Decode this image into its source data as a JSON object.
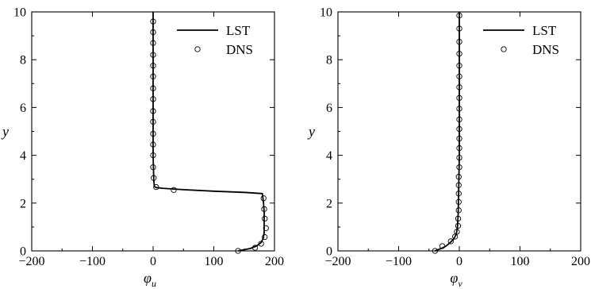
{
  "chart_data": [
    {
      "type": "line",
      "xlabel": "φu",
      "xlabel_main": "φ",
      "xlabel_sub": "u",
      "ylabel": "y",
      "xlim": [
        -200,
        200
      ],
      "ylim": [
        0,
        10
      ],
      "xticks": [
        -200,
        -100,
        0,
        100,
        200
      ],
      "yticks": [
        0,
        2,
        4,
        6,
        8,
        10
      ],
      "legend_position": "top-right",
      "series": [
        {
          "name": "LST",
          "style": "line",
          "points": [
            [
              140,
              0
            ],
            [
              150,
              0.05
            ],
            [
              160,
              0.1
            ],
            [
              170,
              0.2
            ],
            [
              178,
              0.35
            ],
            [
              182,
              0.55
            ],
            [
              183,
              0.8
            ],
            [
              183,
              1.2
            ],
            [
              183,
              1.6
            ],
            [
              182,
              2.0
            ],
            [
              180,
              2.4
            ],
            [
              150,
              2.45
            ],
            [
              100,
              2.5
            ],
            [
              50,
              2.56
            ],
            [
              15,
              2.62
            ],
            [
              5,
              2.65
            ],
            [
              2,
              2.7
            ],
            [
              1,
              3.0
            ],
            [
              0,
              4
            ],
            [
              0,
              6
            ],
            [
              0,
              8
            ],
            [
              0,
              10
            ]
          ]
        },
        {
          "name": "DNS",
          "style": "markers",
          "points": [
            [
              140,
              0
            ],
            [
              168,
              0.13
            ],
            [
              178,
              0.3
            ],
            [
              184,
              0.58
            ],
            [
              186,
              0.95
            ],
            [
              184,
              1.35
            ],
            [
              183,
              1.75
            ],
            [
              182,
              2.2
            ],
            [
              34,
              2.55
            ],
            [
              5,
              2.67
            ],
            [
              1,
              3.05
            ],
            [
              0,
              3.5
            ],
            [
              0,
              4.0
            ],
            [
              0,
              4.45
            ],
            [
              0,
              4.9
            ],
            [
              0,
              5.4
            ],
            [
              0,
              5.85
            ],
            [
              0,
              6.35
            ],
            [
              0,
              6.8
            ],
            [
              0,
              7.3
            ],
            [
              0,
              7.75
            ],
            [
              0,
              8.2
            ],
            [
              0,
              8.7
            ],
            [
              0,
              9.15
            ],
            [
              0,
              9.6
            ]
          ]
        }
      ]
    },
    {
      "type": "line",
      "xlabel": "φv",
      "xlabel_main": "φ",
      "xlabel_sub": "v",
      "ylabel": "y",
      "xlim": [
        -200,
        200
      ],
      "ylim": [
        0,
        10
      ],
      "xticks": [
        -200,
        -100,
        0,
        100,
        200
      ],
      "yticks": [
        0,
        2,
        4,
        6,
        8,
        10
      ],
      "legend_position": "top-right",
      "series": [
        {
          "name": "LST",
          "style": "line",
          "points": [
            [
              -40,
              0
            ],
            [
              -30,
              0.1
            ],
            [
              -22,
              0.2
            ],
            [
              -15,
              0.35
            ],
            [
              -9,
              0.5
            ],
            [
              -5,
              0.7
            ],
            [
              -3,
              1.0
            ],
            [
              -2,
              1.5
            ],
            [
              -1,
              2.5
            ],
            [
              0,
              4
            ],
            [
              0,
              6
            ],
            [
              0,
              8
            ],
            [
              0,
              10
            ]
          ]
        },
        {
          "name": "DNS",
          "style": "markers",
          "points": [
            [
              -40,
              0
            ],
            [
              -28,
              0.2
            ],
            [
              -14,
              0.4
            ],
            [
              -7,
              0.6
            ],
            [
              -4,
              0.8
            ],
            [
              -2,
              1.05
            ],
            [
              -2,
              1.35
            ],
            [
              -1,
              1.7
            ],
            [
              -1,
              2.05
            ],
            [
              -1,
              2.4
            ],
            [
              -1,
              2.75
            ],
            [
              -1,
              3.1
            ],
            [
              0,
              3.5
            ],
            [
              0,
              3.9
            ],
            [
              0,
              4.3
            ],
            [
              0,
              4.7
            ],
            [
              0,
              5.1
            ],
            [
              0,
              5.5
            ],
            [
              0,
              5.95
            ],
            [
              0,
              6.4
            ],
            [
              0,
              6.85
            ],
            [
              0,
              7.3
            ],
            [
              0,
              7.75
            ],
            [
              0,
              8.25
            ],
            [
              0,
              8.75
            ],
            [
              0,
              9.3
            ],
            [
              0,
              9.85
            ]
          ]
        }
      ]
    }
  ]
}
